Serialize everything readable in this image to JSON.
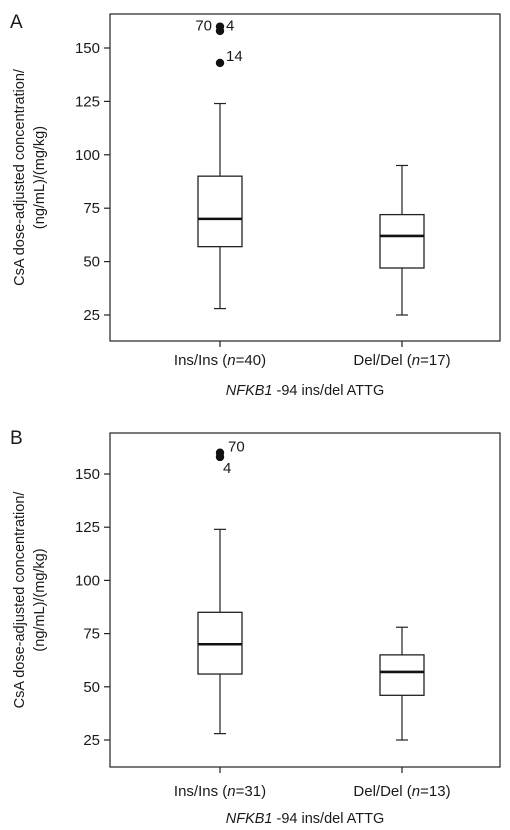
{
  "chart_data": [
    {
      "type": "box",
      "panel": "A",
      "ylabel_line1": "CsA dose-adjusted concentration/",
      "ylabel_line2": "(ng/mL)/(mg/kg)",
      "xlabel_italic": "NFKB1",
      "xlabel_rest": " -94 ins/del ATTG",
      "yticks": [
        25,
        50,
        75,
        100,
        125,
        150
      ],
      "ylim": [
        12,
        170
      ],
      "grid": false,
      "groups": [
        {
          "label_pre": "Ins/Ins (",
          "label_n": "n",
          "label_post": "=40)",
          "whisker_low": 28,
          "q1": 57,
          "median": 70,
          "q3": 90,
          "whisker_high": 124,
          "outliers": [
            {
              "value": 158,
              "label": "70"
            },
            {
              "value": 160,
              "label": "4"
            },
            {
              "value": 143,
              "label": "14"
            }
          ]
        },
        {
          "label_pre": "Del/Del (",
          "label_n": "n",
          "label_post": "=17)",
          "whisker_low": 25,
          "q1": 47,
          "median": 62,
          "q3": 72,
          "whisker_high": 95,
          "outliers": []
        }
      ]
    },
    {
      "type": "box",
      "panel": "B",
      "ylabel_line1": "CsA dose-adjusted concentration/",
      "ylabel_line2": "(ng/mL)/(mg/kg)",
      "xlabel_italic": "NFKB1",
      "xlabel_rest": " -94 ins/del ATTG",
      "yticks": [
        25,
        50,
        75,
        100,
        125,
        150
      ],
      "ylim": [
        12,
        170
      ],
      "grid": false,
      "groups": [
        {
          "label_pre": "Ins/Ins (",
          "label_n": "n",
          "label_post": "=31)",
          "whisker_low": 28,
          "q1": 56,
          "median": 70,
          "q3": 85,
          "whisker_high": 124,
          "outliers": [
            {
              "value": 160,
              "label": "70"
            },
            {
              "value": 158,
              "label": "4"
            }
          ]
        },
        {
          "label_pre": "Del/Del (",
          "label_n": "n",
          "label_post": "=13)",
          "whisker_low": 25,
          "q1": 46,
          "median": 57,
          "q3": 65,
          "whisker_high": 78,
          "outliers": []
        }
      ]
    }
  ]
}
